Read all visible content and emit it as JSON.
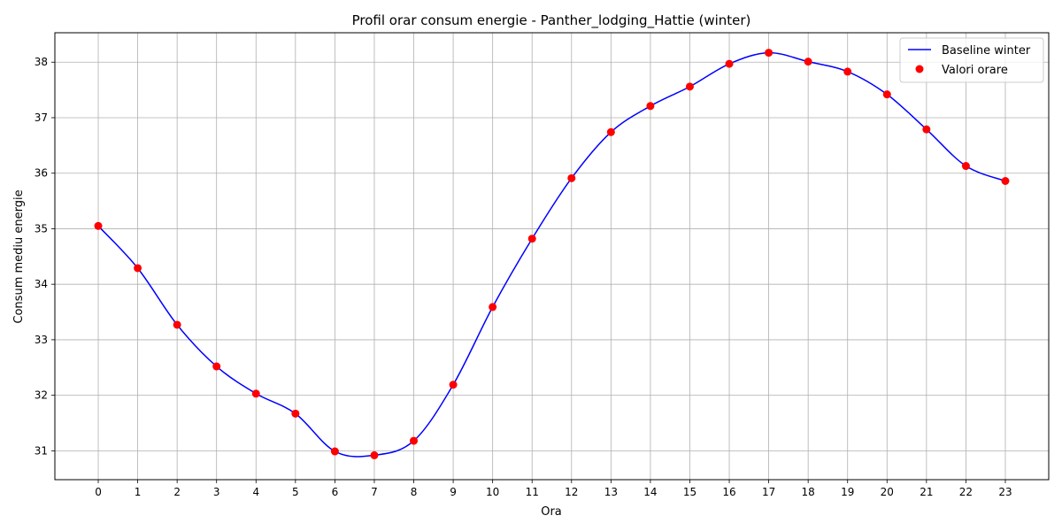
{
  "chart_data": {
    "type": "line",
    "title": "Profil orar consum energie - Panther_lodging_Hattie (winter)",
    "xlabel": "Ora",
    "ylabel": "Consum mediu energie",
    "x": [
      0,
      1,
      2,
      3,
      4,
      5,
      6,
      7,
      8,
      9,
      10,
      11,
      12,
      13,
      14,
      15,
      16,
      17,
      18,
      19,
      20,
      21,
      22,
      23
    ],
    "x_tick_labels": [
      "0",
      "1",
      "2",
      "3",
      "4",
      "5",
      "6",
      "7",
      "8",
      "9",
      "10",
      "11",
      "12",
      "13",
      "14",
      "15",
      "16",
      "17",
      "18",
      "19",
      "20",
      "21",
      "22",
      "23"
    ],
    "xlim": [
      -1.1,
      24.1
    ],
    "ylim": [
      30.48,
      38.53
    ],
    "y_ticks": [
      31,
      32,
      33,
      34,
      35,
      36,
      37,
      38
    ],
    "y_tick_labels": [
      "31",
      "32",
      "33",
      "34",
      "35",
      "36",
      "37",
      "38"
    ],
    "grid": true,
    "legend_position": "top-right",
    "series": [
      {
        "name": "Baseline winter",
        "kind": "line",
        "color": "#0000ff",
        "values": [
          35.05,
          34.29,
          33.27,
          32.52,
          32.03,
          31.67,
          30.99,
          30.92,
          31.18,
          32.19,
          33.59,
          34.82,
          35.91,
          36.74,
          37.21,
          37.56,
          37.97,
          38.17,
          38.01,
          37.83,
          37.42,
          36.79,
          36.13,
          35.86
        ]
      },
      {
        "name": "Valori orare",
        "kind": "scatter",
        "color": "#ff0000",
        "values": [
          35.05,
          34.29,
          33.27,
          32.52,
          32.03,
          31.67,
          30.99,
          30.92,
          31.18,
          32.19,
          33.59,
          34.82,
          35.91,
          36.74,
          37.21,
          37.56,
          37.97,
          38.17,
          38.01,
          37.83,
          37.42,
          36.79,
          36.13,
          35.86
        ]
      }
    ]
  }
}
